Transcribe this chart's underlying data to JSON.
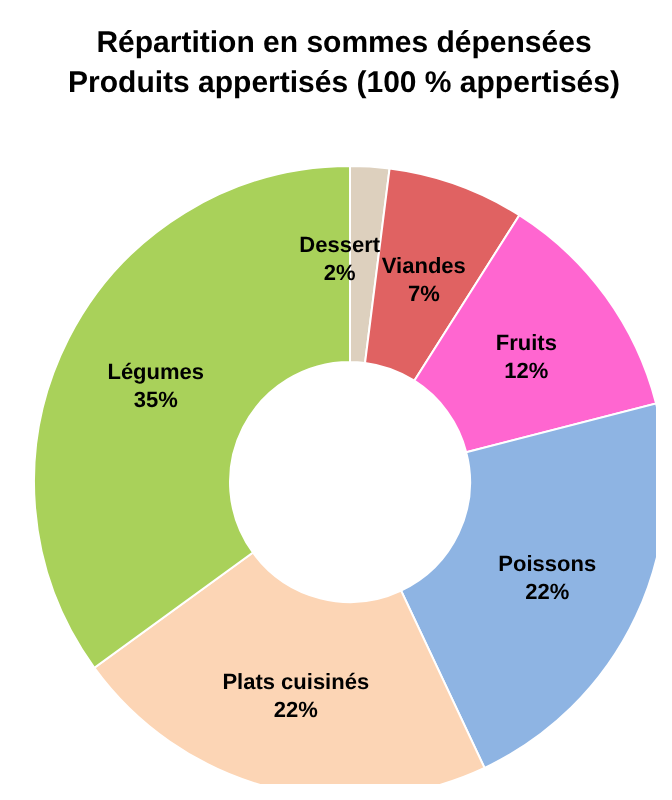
{
  "chart_data": {
    "type": "donut",
    "title": "Répartition en sommes dépensées\nProduits appertisés (100 % appertisés)",
    "categories": [
      "Dessert",
      "Viandes",
      "Fruits",
      "Poissons",
      "Plats cuisinés",
      "Légumes"
    ],
    "values": [
      2,
      7,
      12,
      22,
      22,
      35
    ],
    "colors": [
      "#ddd0be",
      "#e06262",
      "#ff66d0",
      "#8eb4e3",
      "#fcd5b5",
      "#a9d15a"
    ],
    "value_labels": [
      "2%",
      "7%",
      "12%",
      "22%",
      "22%",
      "35%"
    ]
  }
}
